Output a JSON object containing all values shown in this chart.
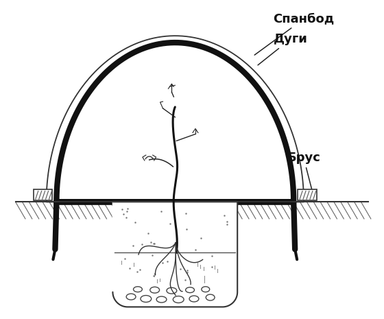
{
  "background_color": "#ffffff",
  "labels": {
    "spanbod": "Спанбод",
    "dugi": "Дуги",
    "brus": "Брус"
  },
  "colors": {
    "spanbod_line": "#222222",
    "arch_thick": "#111111",
    "ground": "#333333",
    "soil_hatch": "#555555",
    "pot": "#333333",
    "pot_fill": "#ffffff",
    "plant": "#222222",
    "root": "#333333",
    "beam": "#444444"
  },
  "figsize": [
    5.6,
    4.65
  ],
  "dpi": 100
}
